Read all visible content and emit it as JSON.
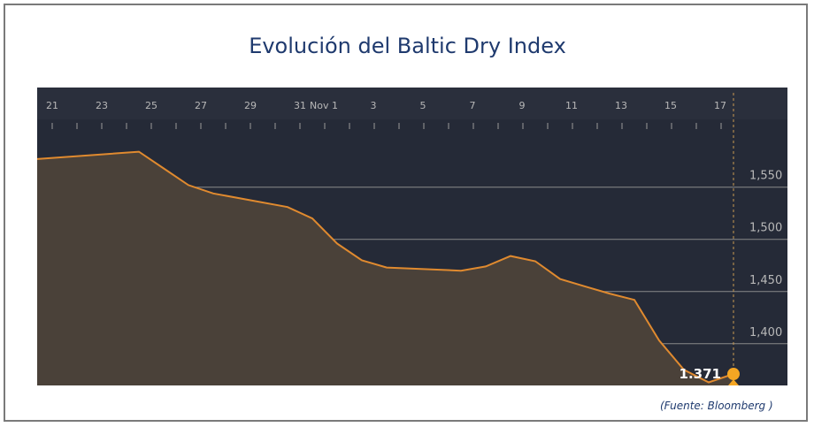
{
  "title": "Evolución del Baltic Dry Index",
  "source": "(Fuente: Bloomberg )",
  "chart_data": {
    "type": "area",
    "title": "Evolución del Baltic Dry Index",
    "x_tick_labels": [
      "21",
      "23",
      "25",
      "27",
      "29",
      "31",
      "Nov 1",
      "3",
      "5",
      "7",
      "9",
      "11",
      "13",
      "15",
      "17"
    ],
    "y_tick_labels": [
      "1,550",
      "1,500",
      "1,450",
      "1,400"
    ],
    "y_ticks": [
      1550,
      1500,
      1450,
      1400
    ],
    "ylim": [
      1360,
      1615
    ],
    "xlim": [
      0,
      30
    ],
    "x": [
      0,
      3.5,
      4.5,
      5.5,
      6.5,
      9.5,
      10.5,
      11.5,
      12.5,
      13.5,
      16.5,
      17.5,
      18.5,
      19.5,
      20.5,
      21.5,
      22.5,
      23.5,
      24.5,
      25.5,
      26.5,
      27.5
    ],
    "values": [
      1577,
      1584,
      1568,
      1552,
      1544,
      1531,
      1520,
      1496,
      1480,
      1473,
      1470,
      1474,
      1484,
      1479,
      1462,
      1455,
      1448,
      1442,
      1403,
      1375,
      1363,
      1371
    ],
    "last_value_label": "1.371",
    "last_value": 1371,
    "last_x": 27.5,
    "grid": true,
    "colors": {
      "background": "#252a37",
      "header": "#2a2f3c",
      "area_fill": "#4a4139",
      "line": "#e08a2f",
      "marker": "#f5a623",
      "gridline": "#8a8a8a",
      "tick_text": "#b8b8b8"
    }
  }
}
